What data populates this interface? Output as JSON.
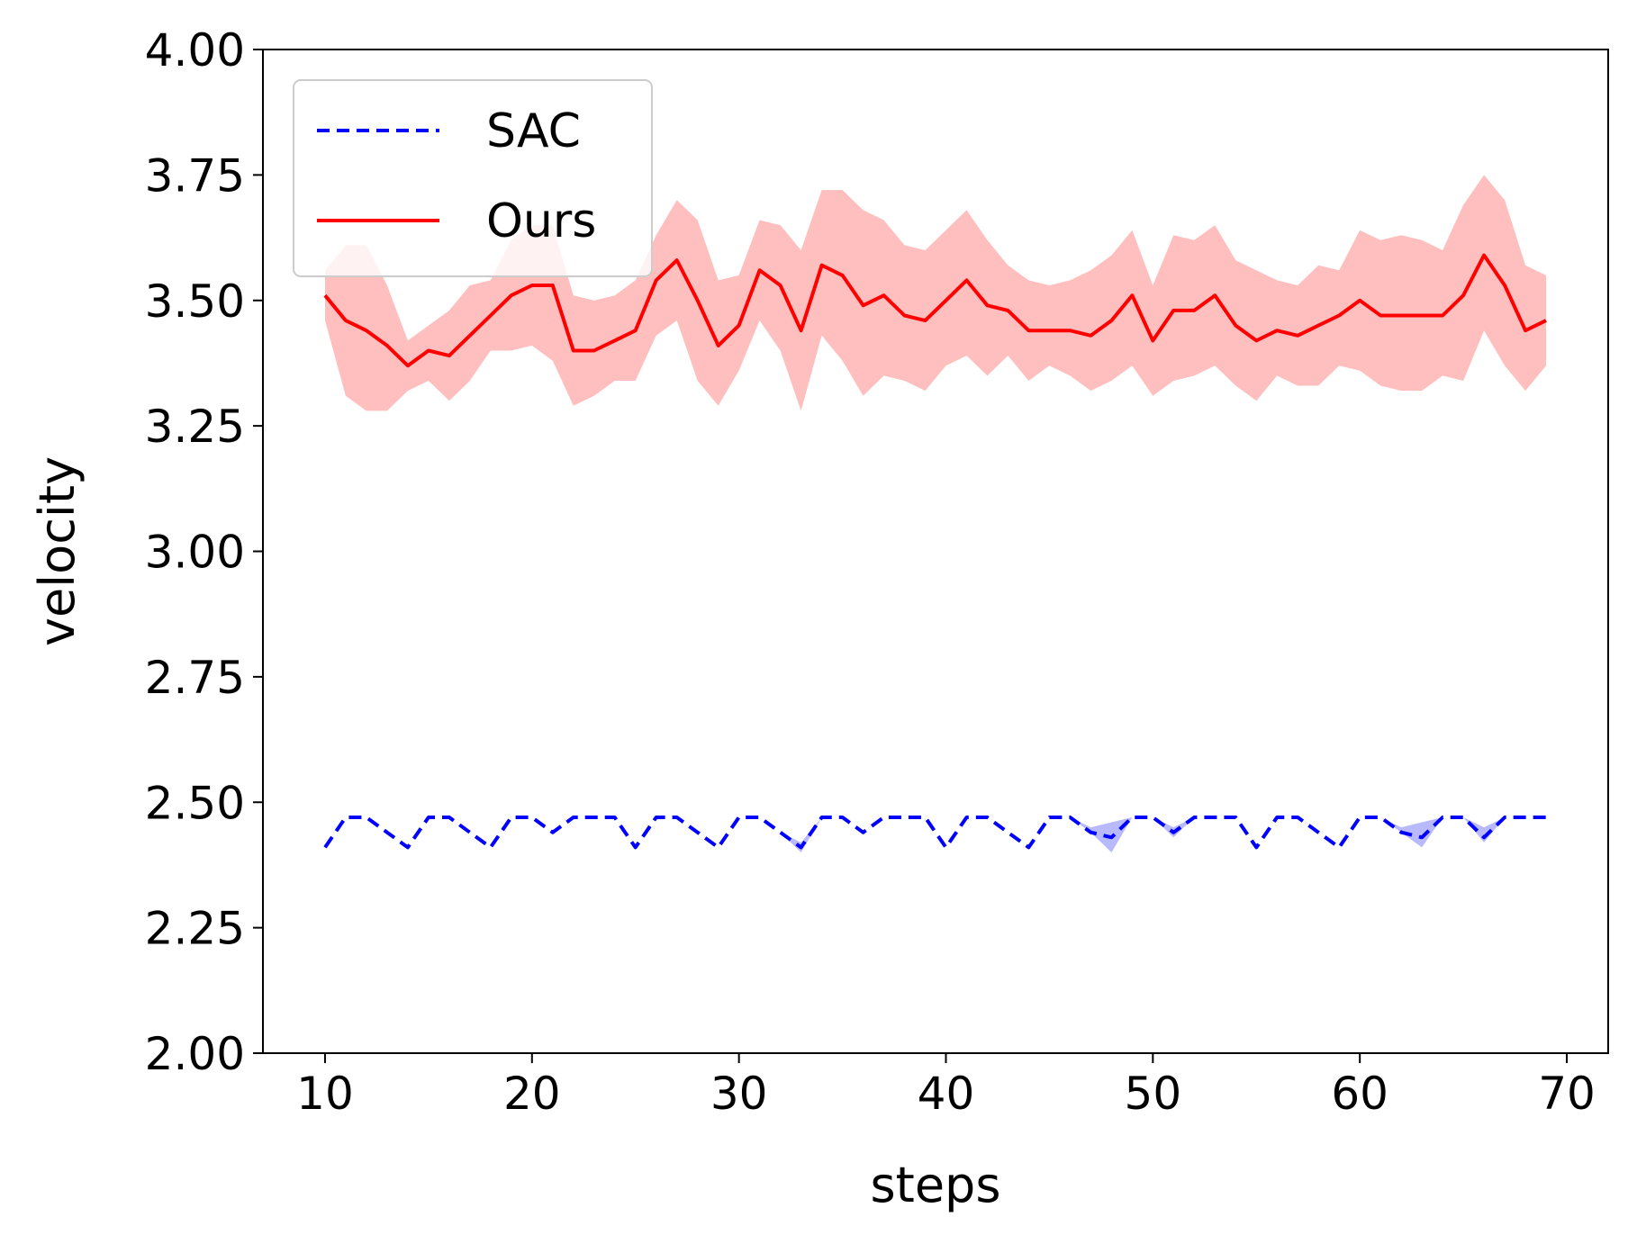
{
  "chart_data": {
    "type": "line",
    "title": "",
    "xlabel": "steps",
    "ylabel": "velocity",
    "xlim": [
      7,
      72
    ],
    "ylim": [
      2.0,
      4.0
    ],
    "xticks": [
      10,
      20,
      30,
      40,
      50,
      60,
      70
    ],
    "yticks": [
      2.0,
      2.25,
      2.5,
      2.75,
      3.0,
      3.25,
      3.5,
      3.75,
      4.0
    ],
    "ytick_labels": [
      "2.00",
      "2.25",
      "2.50",
      "2.75",
      "3.00",
      "3.25",
      "3.50",
      "3.75",
      "4.00"
    ],
    "grid": false,
    "legend_position": "top-left",
    "x": [
      10,
      11,
      12,
      13,
      14,
      15,
      16,
      17,
      18,
      19,
      20,
      21,
      22,
      23,
      24,
      25,
      26,
      27,
      28,
      29,
      30,
      31,
      32,
      33,
      34,
      35,
      36,
      37,
      38,
      39,
      40,
      41,
      42,
      43,
      44,
      45,
      46,
      47,
      48,
      49,
      50,
      51,
      52,
      53,
      54,
      55,
      56,
      57,
      58,
      59,
      60,
      61,
      62,
      63,
      64,
      65,
      66,
      67,
      68,
      69
    ],
    "series": [
      {
        "name": "SAC",
        "color": "#0000ff",
        "style": "dashed",
        "band_color": "#8080ff",
        "values": [
          2.41,
          2.47,
          2.47,
          2.44,
          2.41,
          2.47,
          2.47,
          2.44,
          2.41,
          2.47,
          2.47,
          2.44,
          2.47,
          2.47,
          2.47,
          2.41,
          2.47,
          2.47,
          2.44,
          2.41,
          2.47,
          2.47,
          2.44,
          2.41,
          2.47,
          2.47,
          2.44,
          2.47,
          2.47,
          2.47,
          2.41,
          2.47,
          2.47,
          2.44,
          2.41,
          2.47,
          2.47,
          2.44,
          2.43,
          2.47,
          2.47,
          2.44,
          2.47,
          2.47,
          2.47,
          2.41,
          2.47,
          2.47,
          2.44,
          2.41,
          2.47,
          2.47,
          2.44,
          2.43,
          2.47,
          2.47,
          2.43,
          2.47,
          2.47,
          2.47
        ],
        "lower": [
          2.41,
          2.47,
          2.47,
          2.44,
          2.41,
          2.47,
          2.47,
          2.44,
          2.41,
          2.47,
          2.47,
          2.44,
          2.47,
          2.47,
          2.47,
          2.41,
          2.47,
          2.47,
          2.44,
          2.41,
          2.47,
          2.47,
          2.44,
          2.4,
          2.47,
          2.47,
          2.44,
          2.47,
          2.47,
          2.47,
          2.41,
          2.47,
          2.47,
          2.44,
          2.41,
          2.47,
          2.47,
          2.44,
          2.4,
          2.47,
          2.47,
          2.43,
          2.47,
          2.47,
          2.47,
          2.41,
          2.47,
          2.47,
          2.44,
          2.41,
          2.47,
          2.47,
          2.44,
          2.41,
          2.47,
          2.47,
          2.42,
          2.47,
          2.47,
          2.47
        ],
        "upper": [
          2.41,
          2.47,
          2.47,
          2.44,
          2.41,
          2.47,
          2.47,
          2.44,
          2.41,
          2.47,
          2.47,
          2.44,
          2.47,
          2.47,
          2.47,
          2.41,
          2.47,
          2.47,
          2.44,
          2.41,
          2.47,
          2.47,
          2.44,
          2.42,
          2.47,
          2.47,
          2.44,
          2.47,
          2.47,
          2.47,
          2.41,
          2.47,
          2.47,
          2.44,
          2.41,
          2.47,
          2.47,
          2.45,
          2.46,
          2.47,
          2.47,
          2.45,
          2.47,
          2.47,
          2.47,
          2.41,
          2.47,
          2.47,
          2.44,
          2.41,
          2.47,
          2.47,
          2.45,
          2.46,
          2.47,
          2.47,
          2.45,
          2.47,
          2.47,
          2.47
        ]
      },
      {
        "name": "Ours",
        "color": "#ff0000",
        "style": "solid",
        "band_color": "#ffbfbf",
        "values": [
          3.51,
          3.46,
          3.44,
          3.41,
          3.37,
          3.4,
          3.39,
          3.43,
          3.47,
          3.51,
          3.53,
          3.53,
          3.4,
          3.4,
          3.42,
          3.44,
          3.54,
          3.58,
          3.5,
          3.41,
          3.45,
          3.56,
          3.53,
          3.44,
          3.57,
          3.55,
          3.49,
          3.51,
          3.47,
          3.46,
          3.5,
          3.54,
          3.49,
          3.48,
          3.44,
          3.44,
          3.44,
          3.43,
          3.46,
          3.51,
          3.42,
          3.48,
          3.48,
          3.51,
          3.45,
          3.42,
          3.44,
          3.43,
          3.45,
          3.47,
          3.5,
          3.47,
          3.47,
          3.47,
          3.47,
          3.51,
          3.59,
          3.53,
          3.44,
          3.46
        ],
        "lower": [
          3.46,
          3.31,
          3.28,
          3.28,
          3.32,
          3.34,
          3.3,
          3.34,
          3.4,
          3.4,
          3.41,
          3.38,
          3.29,
          3.31,
          3.34,
          3.34,
          3.43,
          3.46,
          3.34,
          3.29,
          3.36,
          3.46,
          3.4,
          3.28,
          3.43,
          3.38,
          3.31,
          3.35,
          3.34,
          3.32,
          3.37,
          3.39,
          3.35,
          3.39,
          3.34,
          3.37,
          3.35,
          3.32,
          3.34,
          3.37,
          3.31,
          3.34,
          3.35,
          3.37,
          3.33,
          3.3,
          3.35,
          3.33,
          3.33,
          3.37,
          3.36,
          3.33,
          3.32,
          3.32,
          3.35,
          3.34,
          3.44,
          3.37,
          3.32,
          3.37
        ],
        "upper": [
          3.56,
          3.61,
          3.61,
          3.53,
          3.42,
          3.45,
          3.48,
          3.53,
          3.54,
          3.62,
          3.65,
          3.65,
          3.51,
          3.5,
          3.51,
          3.54,
          3.63,
          3.7,
          3.66,
          3.54,
          3.55,
          3.66,
          3.65,
          3.6,
          3.72,
          3.72,
          3.68,
          3.66,
          3.61,
          3.6,
          3.64,
          3.68,
          3.62,
          3.57,
          3.54,
          3.53,
          3.54,
          3.56,
          3.59,
          3.64,
          3.53,
          3.63,
          3.62,
          3.65,
          3.58,
          3.56,
          3.54,
          3.53,
          3.57,
          3.56,
          3.64,
          3.62,
          3.63,
          3.62,
          3.6,
          3.69,
          3.75,
          3.7,
          3.57,
          3.55
        ]
      }
    ]
  }
}
